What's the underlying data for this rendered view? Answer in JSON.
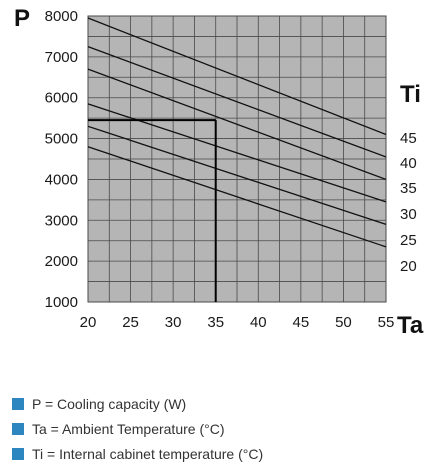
{
  "chart_data": {
    "type": "line",
    "y_axis_letter": "P",
    "x_axis_letter": "Ta",
    "series_axis_letter": "Ti",
    "xlim": [
      20,
      55
    ],
    "ylim": [
      1000,
      8000
    ],
    "x_ticks": [
      20,
      25,
      30,
      35,
      40,
      45,
      50,
      55
    ],
    "y_ticks": [
      1000,
      2000,
      3000,
      4000,
      5000,
      6000,
      7000,
      8000
    ],
    "grid": true,
    "minor_grid": {
      "x_step": 2.5,
      "y_step": 500
    },
    "series": [
      {
        "name": "45",
        "x": [
          20,
          55
        ],
        "y": [
          7950,
          5100
        ]
      },
      {
        "name": "40",
        "x": [
          20,
          55
        ],
        "y": [
          7250,
          4550
        ]
      },
      {
        "name": "35",
        "x": [
          20,
          55
        ],
        "y": [
          6700,
          4000
        ]
      },
      {
        "name": "30",
        "x": [
          20,
          55
        ],
        "y": [
          5850,
          3450
        ]
      },
      {
        "name": "25",
        "x": [
          20,
          55
        ],
        "y": [
          5300,
          2900
        ]
      },
      {
        "name": "20",
        "x": [
          20,
          55
        ],
        "y": [
          4800,
          2350
        ]
      }
    ],
    "annotation": {
      "x": 35,
      "y": 5450
    },
    "colors": {
      "plot_background": "#b5b5b5",
      "grid": "#4a4a4a",
      "lines": "#111111"
    }
  },
  "legend": [
    {
      "text": "P = Cooling capacity (W)"
    },
    {
      "text": "Ta = Ambient Temperature (°C)"
    },
    {
      "text": "Ti = Internal cabinet temperature (°C)"
    }
  ],
  "colors": {
    "legend_bullet": "#2e86c1"
  }
}
